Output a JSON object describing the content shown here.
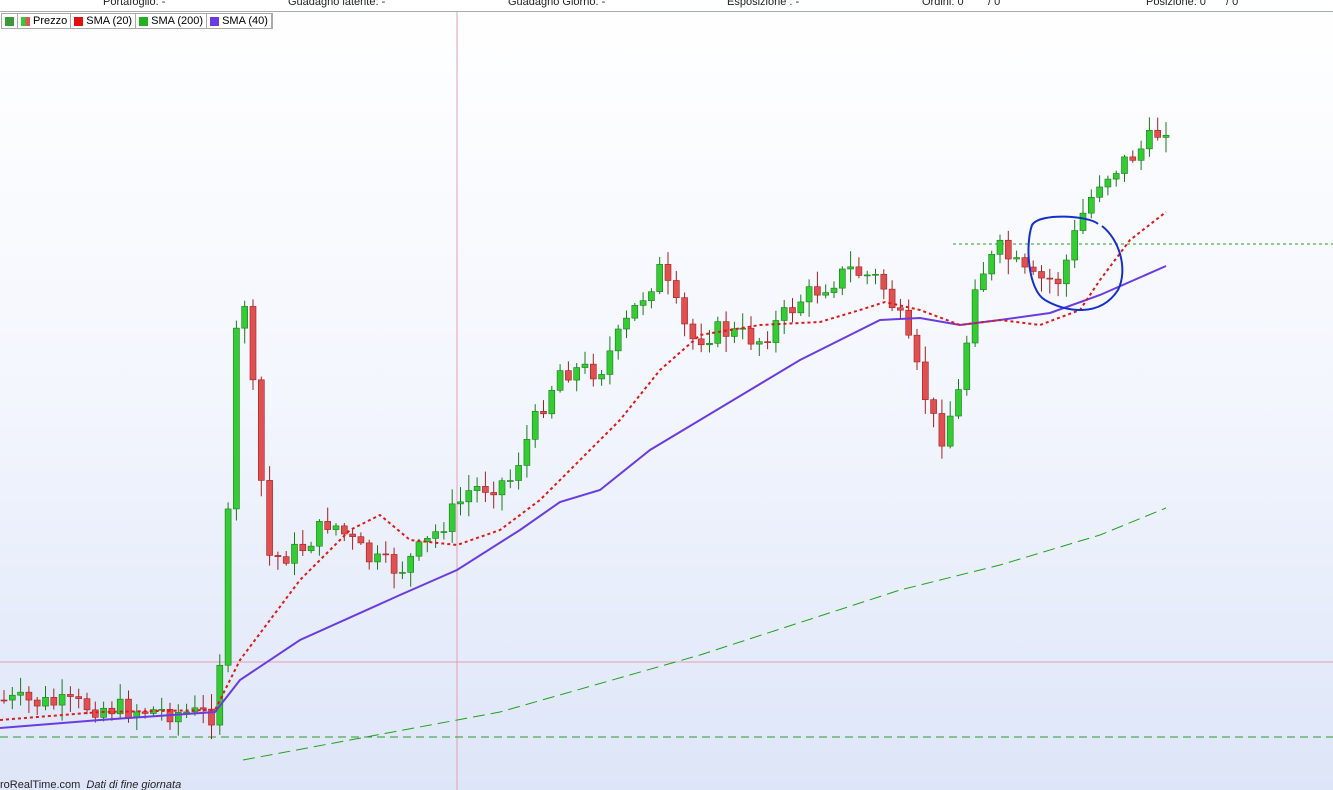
{
  "toolbar": {
    "portfolio": "Portafoglio: -",
    "latent_gain": "Guadagno latente: -",
    "daily_gain": "Guadagno Giorno: -",
    "exposure": "Esposizione : -",
    "orders": "Ordini: 0",
    "orders_of": "/ 0",
    "position": "Posizione: 0",
    "position_of": "/ 0"
  },
  "legend": [
    "Prezzo",
    "SMA (20)",
    "SMA (200)",
    "SMA (40)"
  ],
  "footer": {
    "source": "roRealTime.com",
    "note": "Dati di fine giornata"
  }
}
